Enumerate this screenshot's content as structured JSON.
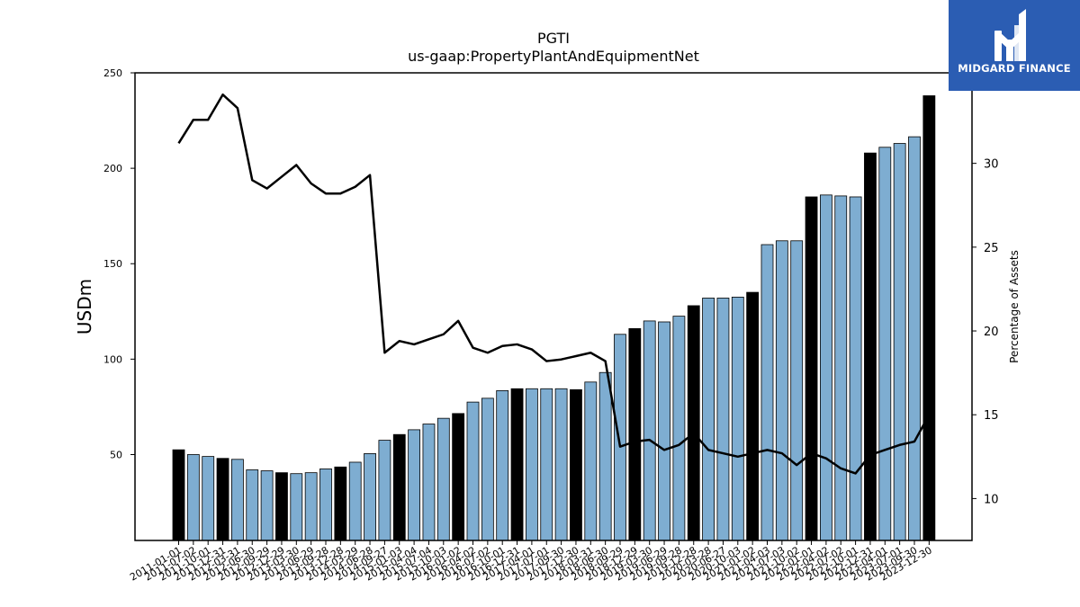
{
  "logo": {
    "text": "MIDGARD FINANCE",
    "background": "#2b5db3",
    "icon": "midgard-m-logo-icon"
  },
  "colors": {
    "bar_default": "#7eadd1",
    "bar_highlight": "#000000",
    "line": "#000000"
  },
  "chart_data": {
    "type": "bar",
    "title": "PGTI",
    "subtitle": "us-gaap:PropertyPlantAndEquipmentNet",
    "ylabel": "USDm",
    "y2label": "Percentage of Assets",
    "ylim": [
      5,
      250
    ],
    "y2lim": [
      7.5,
      35.4
    ],
    "yticks": [
      50,
      100,
      150,
      200,
      250
    ],
    "y2ticks": [
      10,
      15,
      20,
      25,
      30
    ],
    "categories": [
      "2011-01-01",
      "2011-07-02",
      "2011-10-01",
      "2011-12-31",
      "2012-03-31",
      "2012-06-30",
      "2012-09-29",
      "2012-12-29",
      "2013-03-30",
      "2013-06-29",
      "2013-09-28",
      "2013-12-28",
      "2014-03-29",
      "2014-06-28",
      "2014-09-27",
      "2015-01-03",
      "2015-04-04",
      "2015-07-04",
      "2015-10-03",
      "2016-01-02",
      "2016-04-02",
      "2016-07-02",
      "2016-10-01",
      "2016-12-31",
      "2017-04-01",
      "2017-07-01",
      "2017-09-30",
      "2017-12-30",
      "2018-03-31",
      "2018-06-30",
      "2018-09-29",
      "2018-12-29",
      "2019-03-30",
      "2019-06-29",
      "2019-09-28",
      "2019-12-28",
      "2020-03-28",
      "2020-06-27",
      "2020-10-03",
      "2021-01-02",
      "2021-04-03",
      "2021-07-03",
      "2021-10-02",
      "2022-01-01",
      "2022-04-02",
      "2022-07-02",
      "2022-10-01",
      "2022-12-31",
      "2023-04-01",
      "2023-07-01",
      "2023-09-30",
      "2023-12-30"
    ],
    "xtick_labels": [
      "2011-01-01",
      "2011-07-02",
      "2011-10-01",
      "2011-12-31",
      "2012-03-31",
      "2012-06-30",
      "2012-09-29",
      "2012-12-29",
      "2013-03-30",
      "2013-06-29",
      "2013-09-28",
      "2013-12-28",
      "2014-03-29",
      "2014-06-28",
      "2014-09-27",
      "2015-01-03",
      "2015-04-04",
      "2015-07-04",
      "2015-10-03",
      "2016-01-02",
      "2016-04-02",
      "2016-07-02",
      "2016-10-01",
      "2016-12-31",
      "2017-04-01",
      "2017-07-01",
      "2017-09-30",
      "2017-12-30",
      "2018-03-31",
      "2018-06-30",
      "2018-09-29",
      "2018-12-29",
      "2019-03-30",
      "2019-06-29",
      "2019-09-28",
      "2019-12-28",
      "2020-03-28",
      "2020-06-27",
      "2020-10-03",
      "2021-01-02",
      "2021-04-03",
      "2021-07-03",
      "2021-10-02",
      "2022-01-01",
      "2022-04-02",
      "2022-07-02",
      "2022-10-01",
      "2022-12-31",
      "2023-04-01",
      "2023-07-01",
      "2023-09-30",
      "2023-12-30"
    ],
    "series": [
      {
        "axis": "left",
        "values": [
          52.5,
          50,
          49,
          48,
          47.5,
          42,
          41.5,
          40.5,
          40,
          40.5,
          42.5,
          43.5,
          46,
          50.5,
          57.5,
          60.5,
          63,
          66,
          69,
          71.5,
          77.5,
          79.5,
          83.5,
          84.5,
          84.5,
          84.5,
          84.5,
          84,
          88,
          93,
          113,
          116,
          120,
          119.5,
          122.5,
          128,
          132,
          132,
          132.5,
          135,
          160,
          162,
          162,
          185,
          186,
          185.5,
          185,
          208,
          211,
          213,
          216.5,
          238
        ],
        "highlight": [
          true,
          false,
          false,
          true,
          false,
          false,
          false,
          true,
          false,
          false,
          false,
          true,
          false,
          false,
          false,
          true,
          false,
          false,
          false,
          true,
          false,
          false,
          false,
          true,
          false,
          false,
          false,
          true,
          false,
          false,
          false,
          true,
          false,
          false,
          false,
          true,
          false,
          false,
          false,
          true,
          false,
          false,
          false,
          true,
          false,
          false,
          false,
          true,
          false,
          false,
          false,
          true
        ]
      },
      {
        "type": "line",
        "axis": "right",
        "values": [
          31.2,
          32.6,
          32.6,
          34.1,
          33.3,
          29,
          28.5,
          29.2,
          29.9,
          28.8,
          28.2,
          28.2,
          28.6,
          29.3,
          18.7,
          19.4,
          19.2,
          19.5,
          19.8,
          20.6,
          19,
          18.7,
          19.1,
          19.2,
          18.9,
          18.2,
          18.3,
          18.5,
          18.7,
          18.2,
          13.1,
          13.4,
          13.5,
          12.9,
          13.2,
          13.9,
          12.9,
          12.7,
          12.5,
          12.7,
          12.9,
          12.7,
          12,
          12.7,
          12.4,
          11.8,
          11.5,
          12.6,
          12.9,
          13.2,
          13.4,
          15
        ]
      }
    ],
    "grid": false
  }
}
